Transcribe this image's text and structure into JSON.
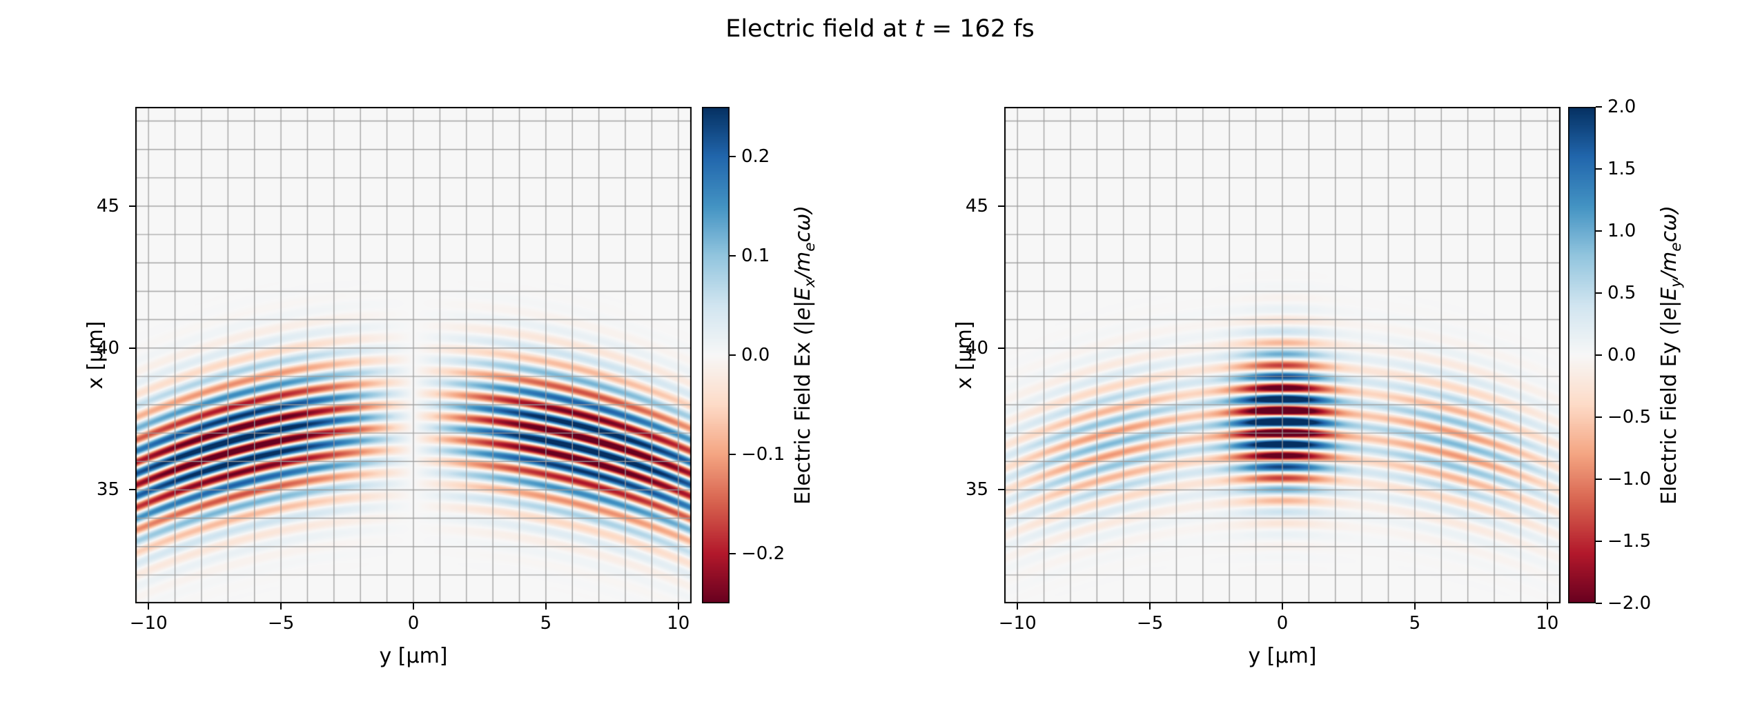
{
  "title": {
    "pre": "Electric field at ",
    "var": "t",
    "post": " = 162 fs"
  },
  "chart_data": {
    "type": "heatmap",
    "title": "Electric field at t = 162 fs",
    "time_label": "t = 162 fs",
    "colormap": {
      "name": "RdBu",
      "stops": [
        [
          103,
          0,
          31
        ],
        [
          178,
          24,
          43
        ],
        [
          214,
          96,
          77
        ],
        [
          244,
          165,
          130
        ],
        [
          253,
          219,
          199
        ],
        [
          247,
          247,
          247
        ],
        [
          209,
          229,
          240
        ],
        [
          146,
          197,
          222
        ],
        [
          67,
          147,
          195
        ],
        [
          33,
          102,
          172
        ],
        [
          5,
          48,
          97
        ]
      ]
    },
    "panels": [
      {
        "name": "Ex",
        "xlabel": "y [μm]",
        "ylabel": "x [μm]",
        "xlim": [
          -10.5,
          10.5
        ],
        "ylim": [
          31,
          48.5
        ],
        "xticks": {
          "values": [
            -10,
            -5,
            0,
            5,
            10
          ],
          "labels": [
            "−10",
            "−5",
            "0",
            "5",
            "10"
          ]
        },
        "yticks": {
          "values": [
            45,
            40,
            35
          ],
          "labels": [
            "45",
            "40",
            "35"
          ]
        },
        "grid": {
          "step": 1,
          "color": "#9b9b9b"
        },
        "colorbar": {
          "label": {
            "plain": "Electric Field Ex ",
            "math_parts": [
              {
                "t": "(|e|E"
              },
              {
                "t": "x",
                "sub": true
              },
              {
                "t": "/m"
              },
              {
                "t": "e",
                "sub": true
              },
              {
                "t": "cω)"
              }
            ]
          },
          "clim": [
            -0.25,
            0.25
          ],
          "ticks": {
            "values": [
              0.2,
              0.1,
              0.0,
              -0.1,
              -0.2
            ],
            "labels": [
              "0.2",
              "0.1",
              "0.0",
              "−0.1",
              "−0.2"
            ]
          }
        },
        "field_model": {
          "kind": "focused_laser_pulse",
          "x0_um": 37.4,
          "sigma_x_um": 1.6,
          "wavelength_um": 0.8,
          "wavefront_radius_um": 27,
          "amplitude": 0.3,
          "phase0": 1.5708,
          "transverse": {
            "type": "odd",
            "sigma_um": 6.5
          }
        }
      },
      {
        "name": "Ey",
        "xlabel": "y [μm]",
        "ylabel": "x [μm]",
        "xlim": [
          -10.5,
          10.5
        ],
        "ylim": [
          31,
          48.5
        ],
        "xticks": {
          "values": [
            -10,
            -5,
            0,
            5,
            10
          ],
          "labels": [
            "−10",
            "−5",
            "0",
            "5",
            "10"
          ]
        },
        "yticks": {
          "values": [
            45,
            40,
            35
          ],
          "labels": [
            "45",
            "40",
            "35"
          ]
        },
        "grid": {
          "step": 1,
          "color": "#9b9b9b"
        },
        "colorbar": {
          "label": {
            "plain": "Electric Field Ey ",
            "math_parts": [
              {
                "t": "(|e|E"
              },
              {
                "t": "y",
                "sub": true
              },
              {
                "t": "/m"
              },
              {
                "t": "e",
                "sub": true
              },
              {
                "t": "cω)"
              }
            ]
          },
          "clim": [
            -2.0,
            2.0
          ],
          "ticks": {
            "values": [
              2.0,
              1.5,
              1.0,
              0.5,
              0.0,
              -0.5,
              -1.0,
              -1.5,
              -2.0
            ],
            "labels": [
              "2.0",
              "1.5",
              "1.0",
              "0.5",
              "0.0",
              "−0.5",
              "−1.0",
              "−1.5",
              "−2.0"
            ]
          }
        },
        "field_model": {
          "kind": "focused_laser_pulse",
          "x0_um": 37.4,
          "sigma_x_um": 1.6,
          "wavelength_um": 0.8,
          "wavefront_radius_um": 27,
          "amplitude": 3.0,
          "phase0": 0,
          "transverse": {
            "type": "even_core_side",
            "core_sigma_um": 1.3,
            "side_amplitude": 0.3,
            "side_center_um": 6.5,
            "side_sigma_um": 2.8
          }
        }
      }
    ]
  }
}
